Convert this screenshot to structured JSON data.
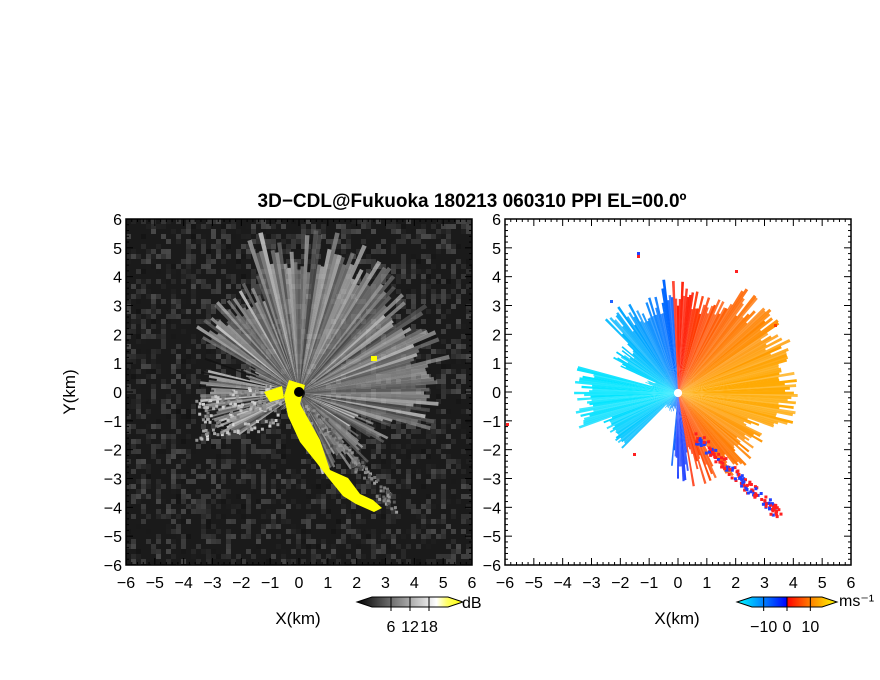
{
  "chart_data": {
    "type": "heatmap",
    "title": "3D−CDL@Fukuoka 180213 060310 PPI EL=00.0º",
    "panels": [
      {
        "name": "reflectivity",
        "xlabel": "X(km)",
        "ylabel": "Y(km)",
        "xlim": [
          -6,
          6
        ],
        "ylim": [
          -6,
          6
        ],
        "xticks": [
          "−6",
          "−5",
          "−4",
          "−3",
          "−2",
          "−1",
          "0",
          "1",
          "2",
          "3",
          "4",
          "5",
          "6"
        ],
        "yticks": [
          "−6",
          "−5",
          "−4",
          "−3",
          "−2",
          "−1",
          "0",
          "1",
          "2",
          "3",
          "4",
          "5",
          "6"
        ],
        "colorbar": {
          "unit": "dB",
          "ticks": [
            "6",
            "12",
            "18"
          ],
          "range": [
            0,
            24
          ],
          "colors": [
            "#000000",
            "#ffffff",
            "#ffff00"
          ]
        },
        "background_color": "#1a1a1a",
        "highlight_color": "#ffff00"
      },
      {
        "name": "doppler-velocity",
        "xlabel": "X(km)",
        "ylabel": "",
        "xlim": [
          -6,
          6
        ],
        "ylim": [
          -6,
          6
        ],
        "xticks": [
          "−6",
          "−5",
          "−4",
          "−3",
          "−2",
          "−1",
          "0",
          "1",
          "2",
          "3",
          "4",
          "5",
          "6"
        ],
        "yticks": [
          "−6",
          "−5",
          "−4",
          "−3",
          "−2",
          "−1",
          "0",
          "1",
          "2",
          "3",
          "4",
          "5",
          "6"
        ],
        "colorbar": {
          "unit": "ms⁻¹",
          "ticks": [
            "−10",
            "0",
            "10"
          ],
          "range": [
            -15,
            15
          ],
          "colors": [
            "#00ffff",
            "#0000ff",
            "#ff0000",
            "#ffff00"
          ]
        },
        "background_color": "#ffffff"
      }
    ]
  }
}
